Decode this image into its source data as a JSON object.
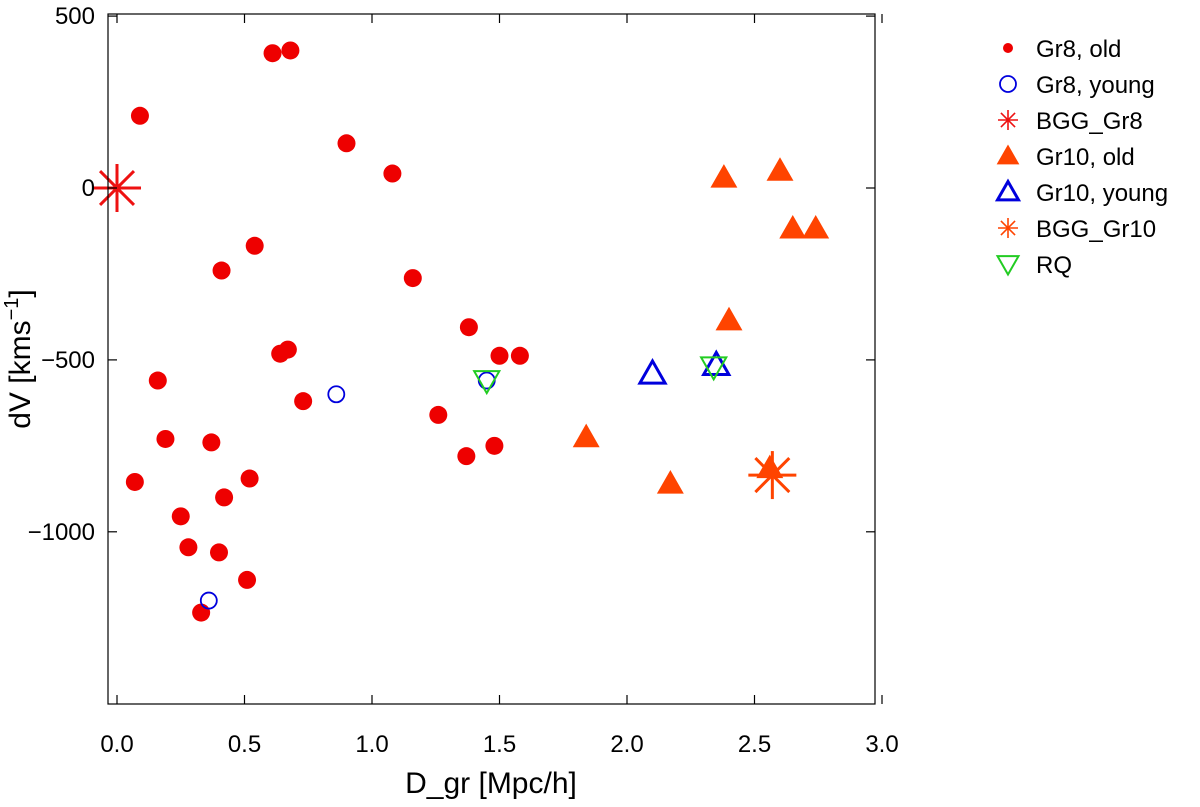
{
  "chart_data": {
    "type": "scatter",
    "title": "",
    "xlabel": "D_gr [Mpc/h]",
    "ylabel": "dV [kms",
    "ylabel_sup": "−1",
    "ylabel_close": "]",
    "xlim": [
      0,
      3.0
    ],
    "ylim": [
      -1500,
      500
    ],
    "x_ticks": [
      0.0,
      0.5,
      1.0,
      1.5,
      2.0,
      2.5,
      3.0
    ],
    "x_tick_labels": [
      "0.0",
      "0.5",
      "1.0",
      "1.5",
      "2.0",
      "2.5",
      "3.0"
    ],
    "y_ticks": [
      500,
      0,
      -500,
      -1000
    ],
    "y_tick_labels": [
      "500",
      "0",
      "−500",
      "−1000"
    ],
    "grid": false,
    "legend_position": "outside-right",
    "series": [
      {
        "name": "Gr8, old",
        "marker": "filled-circle",
        "color": "#ee0000",
        "points": [
          [
            0.61,
            392
          ],
          [
            0.68,
            400
          ],
          [
            0.09,
            210
          ],
          [
            0.9,
            130
          ],
          [
            1.08,
            42
          ],
          [
            0.54,
            -168
          ],
          [
            0.41,
            -240
          ],
          [
            1.16,
            -262
          ],
          [
            1.38,
            -405
          ],
          [
            0.64,
            -482
          ],
          [
            0.67,
            -470
          ],
          [
            1.5,
            -488
          ],
          [
            1.58,
            -488
          ],
          [
            0.16,
            -560
          ],
          [
            0.73,
            -620
          ],
          [
            1.26,
            -660
          ],
          [
            0.19,
            -730
          ],
          [
            0.37,
            -740
          ],
          [
            1.37,
            -780
          ],
          [
            1.48,
            -750
          ],
          [
            0.07,
            -855
          ],
          [
            0.52,
            -845
          ],
          [
            0.42,
            -900
          ],
          [
            0.25,
            -955
          ],
          [
            0.28,
            -1045
          ],
          [
            0.4,
            -1060
          ],
          [
            0.51,
            -1140
          ],
          [
            0.33,
            -1235
          ]
        ]
      },
      {
        "name": "Gr8, young",
        "marker": "open-circle",
        "color": "#0000dd",
        "points": [
          [
            0.86,
            -600
          ],
          [
            1.45,
            -560
          ],
          [
            0.36,
            -1200
          ]
        ]
      },
      {
        "name": "BGG_Gr8",
        "marker": "asterisk",
        "color": "#ee1111",
        "points": [
          [
            0.0,
            0
          ]
        ]
      },
      {
        "name": "Gr10, old",
        "marker": "filled-triangle",
        "color": "#ff4400",
        "points": [
          [
            2.38,
            30
          ],
          [
            2.6,
            50
          ],
          [
            2.65,
            -118
          ],
          [
            2.74,
            -118
          ],
          [
            2.4,
            -385
          ],
          [
            1.84,
            -725
          ],
          [
            2.17,
            -860
          ],
          [
            2.56,
            -815
          ]
        ]
      },
      {
        "name": "Gr10, young",
        "marker": "open-triangle",
        "color": "#0000dd",
        "points": [
          [
            2.1,
            -540
          ],
          [
            2.35,
            -515
          ]
        ]
      },
      {
        "name": "BGG_Gr10",
        "marker": "asterisk",
        "color": "#ff4400",
        "points": [
          [
            2.57,
            -835
          ]
        ]
      },
      {
        "name": "RQ",
        "marker": "open-inverted-triangle",
        "color": "#22cc22",
        "points": [
          [
            1.45,
            -560
          ],
          [
            2.34,
            -520
          ]
        ]
      }
    ]
  }
}
